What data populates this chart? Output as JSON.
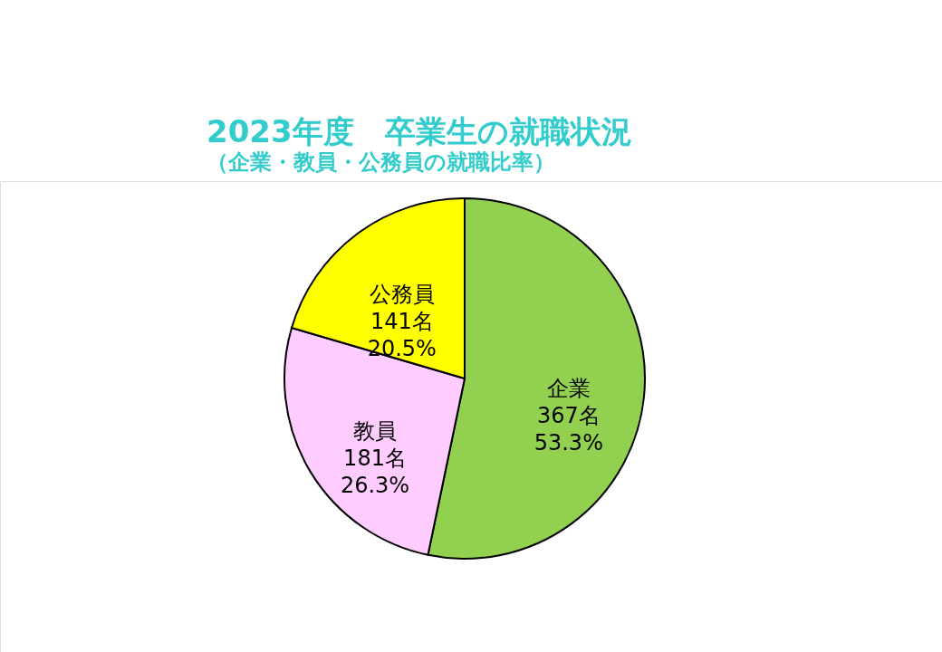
{
  "chart_data": {
    "type": "pie",
    "title": "2023年度　卒業生の就職状況",
    "subtitle": "（企業・教員・公務員の就職比率）",
    "categories": [
      "企業",
      "教員",
      "公務員"
    ],
    "values": [
      367,
      181,
      141
    ],
    "colors": [
      "#92d050",
      "#ffccff",
      "#ffff00"
    ],
    "value_labels": [
      "367名\n53.3%",
      "181名\n26.3%",
      "141名\n20.5%"
    ]
  }
}
